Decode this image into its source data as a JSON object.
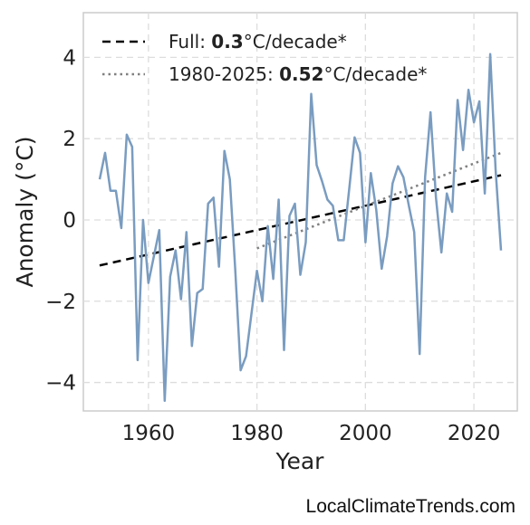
{
  "chart_data": {
    "type": "line",
    "xlabel": "Year",
    "ylabel": "Anomaly (°C)",
    "xlim": [
      1948,
      2028
    ],
    "ylim": [
      -4.7,
      5.1
    ],
    "x_ticks": [
      1960,
      1980,
      2000,
      2020
    ],
    "y_ticks": [
      -4,
      -2,
      0,
      2,
      4
    ],
    "grid": true,
    "legend_position": "top-left",
    "colors": {
      "series": "#7a9cc0",
      "full_trend": "#000000",
      "recent_trend": "#808080"
    },
    "series": [
      {
        "x": [
          1951,
          1952,
          1953,
          1954,
          1955,
          1956,
          1957,
          1958,
          1959,
          1960,
          1961,
          1962,
          1963,
          1964,
          1965,
          1966,
          1967,
          1968,
          1969,
          1970,
          1971,
          1972,
          1973,
          1974,
          1975,
          1976,
          1977,
          1978,
          1979,
          1980,
          1981,
          1982,
          1983,
          1984,
          1985,
          1986,
          1987,
          1988,
          1989,
          1990,
          1991,
          1992,
          1993,
          1994,
          1995,
          1996,
          1997,
          1998,
          1999,
          2000,
          2001,
          2002,
          2003,
          2004,
          2005,
          2006,
          2007,
          2008,
          2009,
          2010,
          2011,
          2012,
          2013,
          2014,
          2015,
          2016,
          2017,
          2018,
          2019,
          2020,
          2021,
          2022,
          2023,
          2024,
          2025
        ],
        "values": [
          1.0,
          1.65,
          0.72,
          0.72,
          -0.2,
          2.1,
          1.8,
          -3.45,
          0.0,
          -1.55,
          -0.9,
          -0.25,
          -4.45,
          -1.4,
          -0.75,
          -1.95,
          -0.3,
          -3.1,
          -1.8,
          -1.7,
          0.4,
          0.55,
          -1.15,
          1.7,
          1.0,
          -1.2,
          -3.7,
          -3.35,
          -2.3,
          -1.25,
          -2.0,
          -0.15,
          -1.45,
          0.5,
          -3.2,
          0.1,
          0.4,
          -1.35,
          -0.55,
          3.1,
          1.35,
          0.95,
          0.5,
          0.35,
          -0.5,
          -0.5,
          0.75,
          2.03,
          1.65,
          -0.55,
          1.15,
          0.25,
          -1.2,
          -0.4,
          0.9,
          1.32,
          1.05,
          0.35,
          -0.3,
          -3.3,
          1.05,
          2.65,
          0.55,
          -0.8,
          0.65,
          0.2,
          2.95,
          1.72,
          3.2,
          2.4,
          2.92,
          0.65,
          4.08,
          1.25,
          -0.75
        ]
      }
    ],
    "trends": [
      {
        "label_prefix": "Full: ",
        "label_value": "0.3",
        "label_suffix": "°C/decade*",
        "x": [
          1951,
          2025
        ],
        "y": [
          -1.12,
          1.1
        ]
      },
      {
        "label_prefix": "1980-2025: ",
        "label_value": "0.52",
        "label_suffix": "°C/decade*",
        "x": [
          1980,
          2025
        ],
        "y": [
          -0.7,
          1.65
        ]
      }
    ]
  },
  "credit": "LocalClimateTrends.com"
}
